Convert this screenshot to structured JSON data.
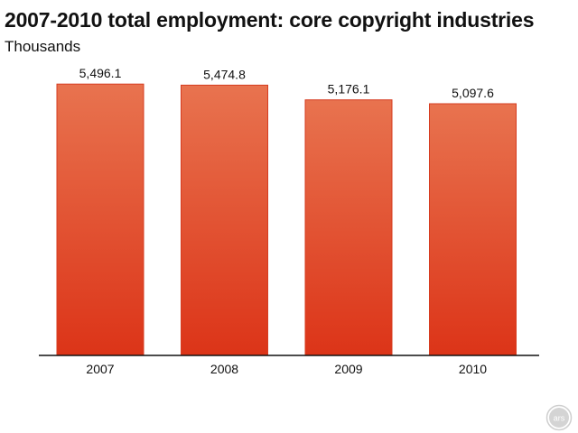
{
  "chart_data": {
    "type": "bar",
    "title": "2007-2010 total employment: core copyright industries",
    "subtitle": "Thousands",
    "categories": [
      "2007",
      "2008",
      "2009",
      "2010"
    ],
    "values": [
      5496.1,
      5474.8,
      5176.1,
      5097.6
    ],
    "data_labels": [
      "5,496.1",
      "5,474.8",
      "5,176.1",
      "5,097.6"
    ],
    "xlabel": "",
    "ylabel": "",
    "ylim": [
      0,
      5920
    ],
    "grid": false,
    "legend": "none"
  },
  "colors": {
    "bar_top": "#e8734f",
    "bar_bottom": "#dc3418",
    "bar_border": "#d63c20",
    "axis": "#111111",
    "logo": "#cfcfcf"
  },
  "logo": {
    "text": "ars"
  }
}
